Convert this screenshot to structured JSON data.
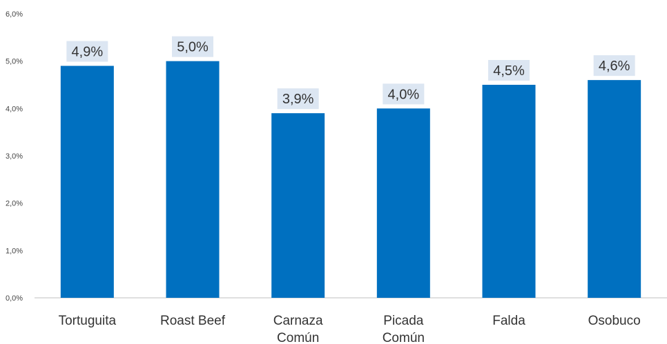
{
  "chart_data": {
    "type": "bar",
    "categories": [
      [
        "Tortuguita"
      ],
      [
        "Roast Beef"
      ],
      [
        "Carnaza",
        "Común"
      ],
      [
        "Picada",
        "Común"
      ],
      [
        "Falda"
      ],
      [
        "Osobuco"
      ]
    ],
    "values": [
      4.9,
      5.0,
      3.9,
      4.0,
      4.5,
      4.6
    ],
    "data_labels": [
      "4,9%",
      "5,0%",
      "3,9%",
      "4,0%",
      "4,5%",
      "4,6%"
    ],
    "y_ticks": [
      "0,0%",
      "1,0%",
      "2,0%",
      "3,0%",
      "4,0%",
      "5,0%",
      "6,0%"
    ],
    "ylim": [
      0,
      6
    ],
    "title": "",
    "xlabel": "",
    "ylabel": "",
    "grid": false,
    "legend": "none",
    "colors": {
      "bar": "#0070C0",
      "label_background": "#DCE6F2",
      "axis": "#BFBFBF"
    }
  }
}
